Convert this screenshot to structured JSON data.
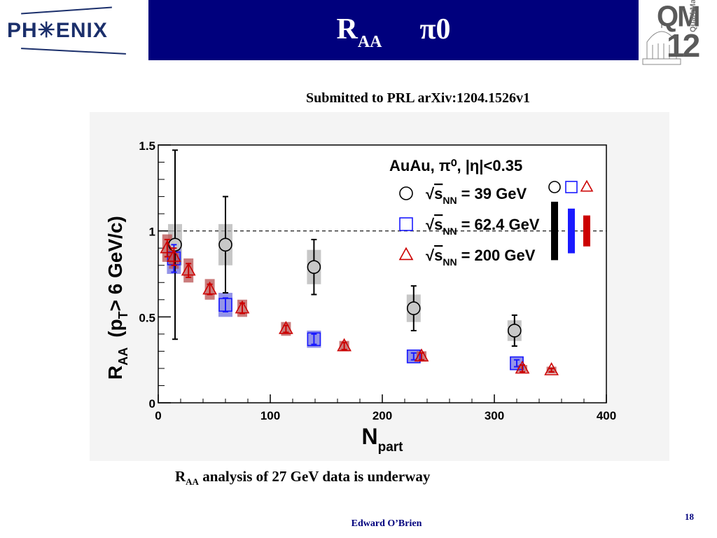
{
  "header": {
    "logo_left_text": "PH✳ENIX",
    "title_main": "R",
    "title_sub": "AA",
    "title_particle": "π0",
    "logo_right_top": "QM",
    "logo_right_bottom": "12",
    "logo_right_vertical": "QuarkMatter",
    "bar_color": "#00007d"
  },
  "subtitle": "Submitted to PRL arXiv:1204.1526v1",
  "footer_note": {
    "main": "R",
    "sub": "AA",
    "rest": " analysis of 27 GeV data is underway"
  },
  "author": "Edward O’Brien",
  "page_number": "18",
  "chart_data": {
    "type": "scatter",
    "xlabel": "N",
    "xlabel_sub": "part",
    "ylabel": "R",
    "ylabel_sub": "AA",
    "ylabel_rest": "(p",
    "ylabel_sub2": "T",
    "ylabel_tail": "> 6 GeV/c)",
    "xlim": [
      0,
      400
    ],
    "ylim": [
      0,
      1.5
    ],
    "xticks": [
      "0",
      "100",
      "200",
      "300",
      "400"
    ],
    "yticks": [
      "0",
      "0.5",
      "1",
      "1.5"
    ],
    "reference_line": 1,
    "legend_title": "AuAu, π⁰, |η|<0.35",
    "legend_placement": "top-right",
    "series": [
      {
        "name": "√s_NN = 39 GeV",
        "marker": "circle",
        "color": "#000000",
        "box_color": "#b4b4b4",
        "legend_label": "= 39 GeV",
        "points": [
          {
            "x": 15,
            "y": 0.92,
            "err_lo": 0.55,
            "err_hi": 0.55,
            "sys": 0.12
          },
          {
            "x": 60,
            "y": 0.92,
            "err_lo": 0.28,
            "err_hi": 0.28,
            "sys": 0.12
          },
          {
            "x": 139,
            "y": 0.79,
            "err_lo": 0.16,
            "err_hi": 0.16,
            "sys": 0.1
          },
          {
            "x": 228,
            "y": 0.55,
            "err_lo": 0.13,
            "err_hi": 0.13,
            "sys": 0.08
          },
          {
            "x": 318,
            "y": 0.42,
            "err_lo": 0.09,
            "err_hi": 0.09,
            "sys": 0.06
          }
        ]
      },
      {
        "name": "√s_NN = 62.4 GeV",
        "marker": "square",
        "color": "#1a1aff",
        "box_color": "#7070e0",
        "legend_label": "= 62.4 GeV",
        "points": [
          {
            "x": 14,
            "y": 0.84,
            "err_lo": 0.08,
            "err_hi": 0.08,
            "sys": 0.09
          },
          {
            "x": 60,
            "y": 0.57,
            "err_lo": 0.04,
            "err_hi": 0.04,
            "sys": 0.07
          },
          {
            "x": 139,
            "y": 0.37,
            "err_lo": 0.03,
            "err_hi": 0.03,
            "sys": 0.05
          },
          {
            "x": 228,
            "y": 0.27,
            "err_lo": 0.02,
            "err_hi": 0.02,
            "sys": 0.04
          },
          {
            "x": 320,
            "y": 0.23,
            "err_lo": 0.02,
            "err_hi": 0.02,
            "sys": 0.04
          }
        ]
      },
      {
        "name": "√s_NN = 200 GeV",
        "marker": "triangle",
        "color": "#cc0000",
        "box_color": "#b85050",
        "legend_label": "= 200 GeV",
        "points": [
          {
            "x": 8,
            "y": 0.9,
            "err_lo": 0.05,
            "err_hi": 0.05,
            "sys": 0.08
          },
          {
            "x": 14,
            "y": 0.85,
            "err_lo": 0.05,
            "err_hi": 0.05,
            "sys": 0.07
          },
          {
            "x": 27,
            "y": 0.77,
            "err_lo": 0.04,
            "err_hi": 0.04,
            "sys": 0.07
          },
          {
            "x": 46,
            "y": 0.66,
            "err_lo": 0.03,
            "err_hi": 0.03,
            "sys": 0.06
          },
          {
            "x": 75,
            "y": 0.55,
            "err_lo": 0.03,
            "err_hi": 0.03,
            "sys": 0.05
          },
          {
            "x": 114,
            "y": 0.43,
            "err_lo": 0.02,
            "err_hi": 0.02,
            "sys": 0.04
          },
          {
            "x": 166,
            "y": 0.33,
            "err_lo": 0.02,
            "err_hi": 0.02,
            "sys": 0.03
          },
          {
            "x": 235,
            "y": 0.27,
            "err_lo": 0.02,
            "err_hi": 0.02,
            "sys": 0.03
          },
          {
            "x": 325,
            "y": 0.2,
            "err_lo": 0.02,
            "err_hi": 0.02,
            "sys": 0.02
          },
          {
            "x": 351,
            "y": 0.19,
            "err_lo": 0.01,
            "err_hi": 0.01,
            "sys": 0.02
          }
        ]
      }
    ],
    "global_uncertainties": [
      {
        "series": "39 GeV",
        "color": "#000000",
        "half_height": 0.17
      },
      {
        "series": "62.4 GeV",
        "color": "#1a1aff",
        "half_height": 0.13
      },
      {
        "series": "200 GeV",
        "color": "#cc0000",
        "half_height": 0.09
      }
    ]
  }
}
